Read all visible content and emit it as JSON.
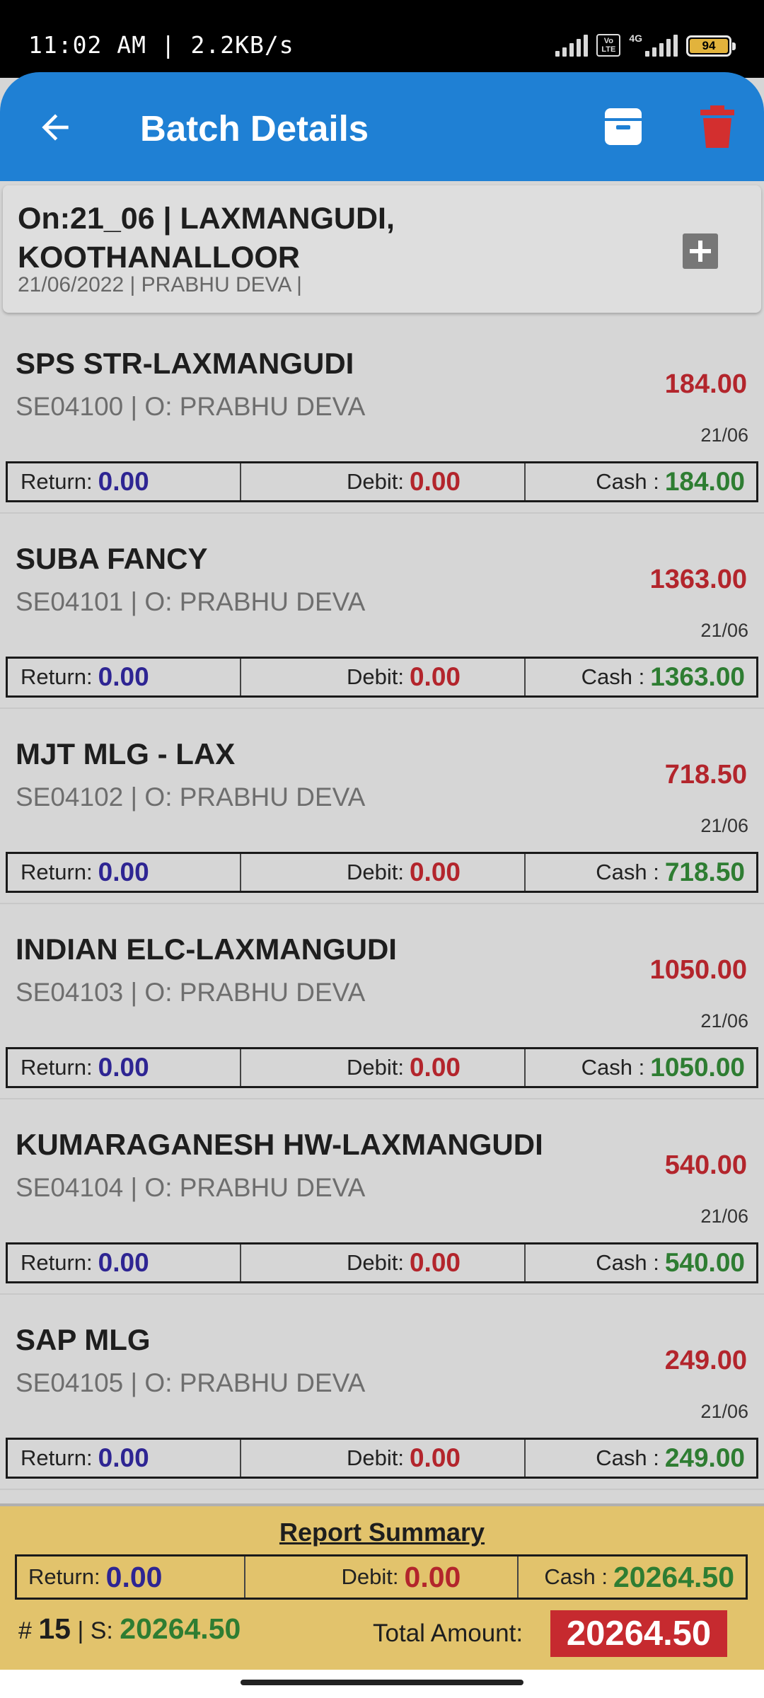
{
  "status_bar": {
    "time": "11:02 AM | 2.2KB/s",
    "volte": "Vo LTE",
    "network": "4G",
    "battery": "94"
  },
  "app_bar": {
    "title": "Batch Details",
    "color": "#1f80d4",
    "icons": [
      "back-arrow-icon",
      "archive-icon",
      "trash-icon"
    ]
  },
  "batch": {
    "title": "On:21_06 | LAXMANGUDI, KOOTHANALLOOR",
    "subtitle": "21/06/2022 | PRABHU DEVA |"
  },
  "labels": {
    "return": "Return:",
    "debit": "Debit:",
    "cash": "Cash :"
  },
  "entries": [
    {
      "name": "SPS STR-LAXMANGUDI",
      "code": "SE04100 | O: PRABHU DEVA",
      "amount": "184.00",
      "date": "21/06",
      "return": "0.00",
      "debit": "0.00",
      "cash": "184.00"
    },
    {
      "name": "SUBA FANCY",
      "code": "SE04101 | O: PRABHU DEVA",
      "amount": "1363.00",
      "date": "21/06",
      "return": "0.00",
      "debit": "0.00",
      "cash": "1363.00"
    },
    {
      "name": "MJT MLG - LAX",
      "code": "SE04102 | O: PRABHU DEVA",
      "amount": "718.50",
      "date": "21/06",
      "return": "0.00",
      "debit": "0.00",
      "cash": "718.50"
    },
    {
      "name": "INDIAN ELC-LAXMANGUDI",
      "code": "SE04103 | O: PRABHU DEVA",
      "amount": "1050.00",
      "date": "21/06",
      "return": "0.00",
      "debit": "0.00",
      "cash": "1050.00"
    },
    {
      "name": "KUMARAGANESH HW-LAXMANGUDI",
      "code": "SE04104 | O: PRABHU DEVA",
      "amount": "540.00",
      "date": "21/06",
      "return": "0.00",
      "debit": "0.00",
      "cash": "540.00"
    },
    {
      "name": "SAP MLG",
      "code": "SE04105 | O: PRABHU DEVA",
      "amount": "249.00",
      "date": "21/06",
      "return": "0.00",
      "debit": "0.00",
      "cash": "249.00"
    }
  ],
  "summary": {
    "title": "Report Summary",
    "return": "0.00",
    "debit": "0.00",
    "cash": "20264.50",
    "hash": "#",
    "count": "15",
    "s_label": "| S:",
    "s_value": "20264.50",
    "total_label": "Total Amount:",
    "total_value": "20264.50",
    "background": "#e2c36c"
  },
  "colors": {
    "amount_red": "#b3252c",
    "return_blue": "#2e2593",
    "cash_green": "#2e7d32",
    "delete_red": "#d32f2f"
  }
}
